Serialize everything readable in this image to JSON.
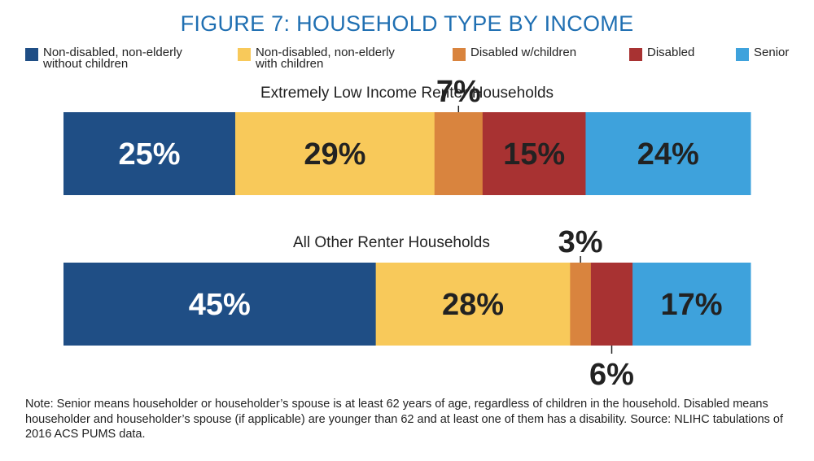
{
  "title": "FIGURE 7: HOUSEHOLD TYPE BY INCOME",
  "legend": [
    {
      "label": "Non-disabled, non-elderly\nwithout children",
      "color": "#1f4e85"
    },
    {
      "label": "Non-disabled, non-elderly\nwith children",
      "color": "#f8c95a"
    },
    {
      "label": "Disabled w/children",
      "color": "#d9843e"
    },
    {
      "label": "Disabled",
      "color": "#a83232"
    },
    {
      "label": "Senior",
      "color": "#3ea2dc"
    }
  ],
  "chart_data": {
    "type": "bar",
    "orientation": "horizontal-stacked-100",
    "categories": [
      "Extremely Low Income Renter Households",
      "All Other Renter Households"
    ],
    "series": [
      {
        "name": "Non-disabled, non-elderly without children",
        "values": [
          25,
          45
        ]
      },
      {
        "name": "Non-disabled, non-elderly with children",
        "values": [
          29,
          28
        ]
      },
      {
        "name": "Disabled w/children",
        "values": [
          7,
          3
        ]
      },
      {
        "name": "Disabled",
        "values": [
          15,
          6
        ]
      },
      {
        "name": "Senior",
        "values": [
          24,
          17
        ]
      }
    ],
    "data_labels": [
      [
        "25%",
        "29%",
        "7%",
        "15%",
        "24%"
      ],
      [
        "45%",
        "28%",
        "3%",
        "6%",
        "17%"
      ]
    ],
    "label_text_colors": [
      [
        "#ffffff",
        "#222222",
        "#222222",
        "#222222",
        "#222222"
      ],
      [
        "#ffffff",
        "#222222",
        "#222222",
        "#222222",
        "#222222"
      ]
    ],
    "xlim": [
      0,
      100
    ],
    "grid": false,
    "legend_position": "top"
  },
  "note": "Note: Senior means householder or householder’s spouse is at least 62 years of age, regardless of children in the household. Disabled means householder and householder’s spouse (if applicable) are younger than 62 and at least one of them has a disability. Source: NLIHC tabulations of 2016 ACS PUMS data."
}
